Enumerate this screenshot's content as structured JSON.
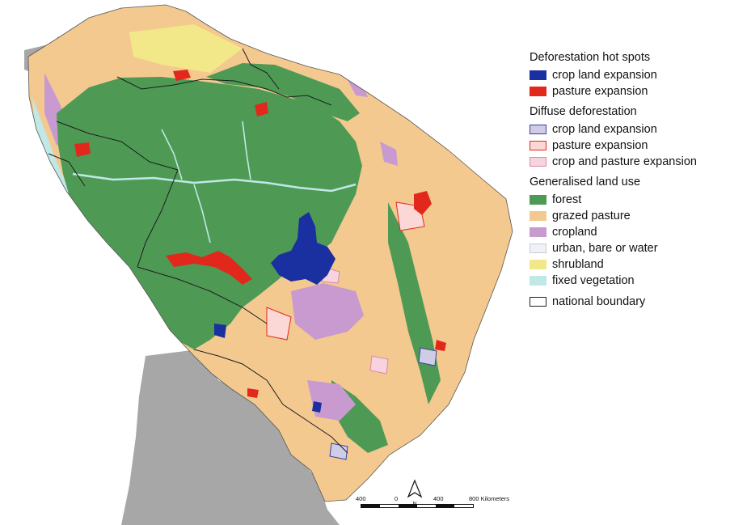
{
  "legend": {
    "hotspots": {
      "title": "Deforestation hot spots",
      "items": [
        {
          "label": "crop land expansion",
          "color": "#1a2fa0"
        },
        {
          "label": "pasture expansion",
          "color": "#e2281c"
        }
      ]
    },
    "diffuse": {
      "title": "Diffuse deforestation",
      "items": [
        {
          "label": "crop land expansion",
          "fill": "#cfcce8",
          "border": "#3c3f9a"
        },
        {
          "label": "pasture expansion",
          "fill": "#fbd7d5",
          "border": "#e2281c"
        },
        {
          "label": "crop and pasture expansion",
          "fill": "#f6d3df",
          "border": "#d98aa6"
        }
      ]
    },
    "landuse": {
      "title": "Generalised land use",
      "items": [
        {
          "label": "forest",
          "color": "#4e9a55"
        },
        {
          "label": "grazed pasture",
          "color": "#f3c98f"
        },
        {
          "label": "cropland",
          "color": "#c89ad0"
        },
        {
          "label": "urban, bare or water",
          "color": "#eef2f6"
        },
        {
          "label": "shrubland",
          "color": "#f2e88a"
        },
        {
          "label": "fixed vegetation",
          "color": "#bfe8e6"
        }
      ]
    },
    "boundary_label": "national boundary"
  },
  "scale": {
    "ticks": [
      "400",
      "0",
      "400",
      "800 Kilometers"
    ]
  },
  "north_label": "N",
  "colors": {
    "ocean": "#ffffff",
    "other_land": "#a6a7a6",
    "boundary": "#1d1d1d"
  }
}
